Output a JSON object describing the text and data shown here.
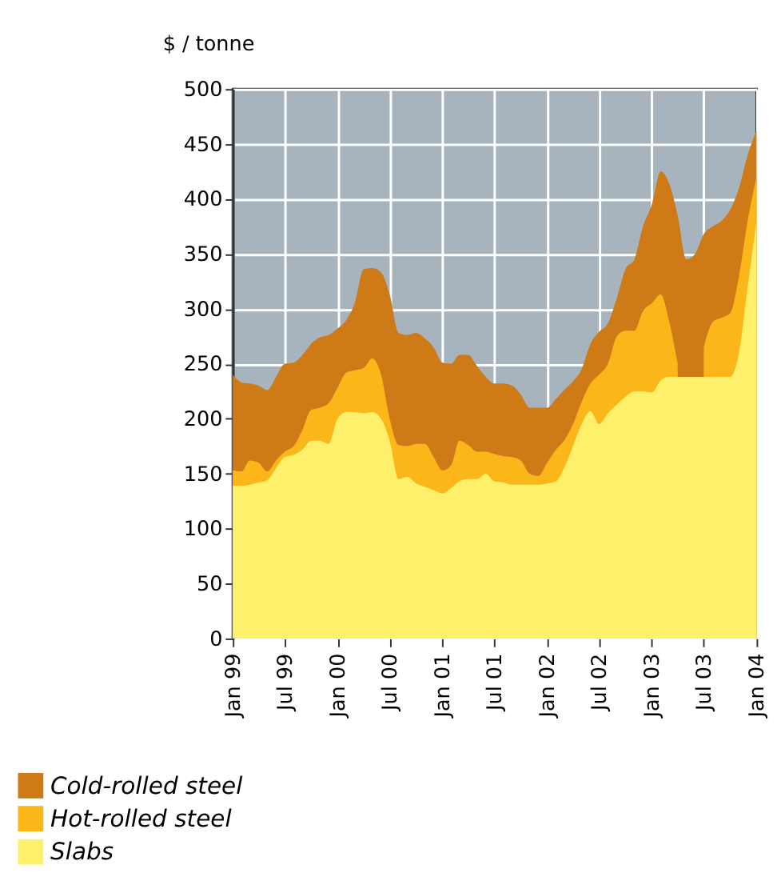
{
  "chart_data": {
    "type": "area",
    "ylabel": "$ / tonne",
    "x": [
      "1999-01",
      "1999-02",
      "1999-03",
      "1999-04",
      "1999-05",
      "1999-06",
      "1999-07",
      "1999-08",
      "1999-09",
      "1999-10",
      "1999-11",
      "1999-12",
      "2000-01",
      "2000-02",
      "2000-03",
      "2000-04",
      "2000-05",
      "2000-06",
      "2000-07",
      "2000-08",
      "2000-09",
      "2000-10",
      "2000-11",
      "2000-12",
      "2001-01",
      "2001-02",
      "2001-03",
      "2001-04",
      "2001-05",
      "2001-06",
      "2001-07",
      "2001-08",
      "2001-09",
      "2001-10",
      "2001-11",
      "2001-12",
      "2002-01",
      "2002-02",
      "2002-03",
      "2002-04",
      "2002-05",
      "2002-06",
      "2002-07",
      "2002-08",
      "2002-09",
      "2002-10",
      "2002-11",
      "2002-12",
      "2003-01",
      "2003-02",
      "2003-03",
      "2003-04",
      "2003-05",
      "2003-06",
      "2003-07",
      "2003-08",
      "2003-09",
      "2003-10",
      "2003-11",
      "2003-12",
      "2004-01"
    ],
    "series": [
      {
        "name": "Cold-rolled steel",
        "color": "#cd7a17",
        "values": [
          240,
          233,
          232,
          230,
          226,
          238,
          250,
          251,
          258,
          268,
          274,
          276,
          282,
          290,
          305,
          336,
          337,
          333,
          313,
          278,
          276,
          278,
          273,
          265,
          251,
          250,
          258,
          258,
          248,
          238,
          232,
          232,
          230,
          222,
          210,
          210,
          210,
          218,
          226,
          234,
          245,
          268,
          279,
          287,
          310,
          336,
          345,
          375,
          395,
          425,
          415,
          385,
          345,
          350,
          368,
          375,
          380,
          390,
          410,
          440,
          462
        ]
      },
      {
        "name": "Hot-rolled steel",
        "color": "#fbb619",
        "values": [
          153,
          152,
          162,
          160,
          152,
          162,
          170,
          175,
          190,
          208,
          210,
          214,
          228,
          242,
          244,
          246,
          255,
          240,
          200,
          176,
          175,
          177,
          177,
          165,
          153,
          158,
          180,
          176,
          170,
          170,
          168,
          166,
          165,
          162,
          150,
          148,
          160,
          172,
          180,
          195,
          215,
          232,
          240,
          250,
          275,
          280,
          280,
          298,
          305,
          313,
          290,
          250,
          null,
          null,
          265,
          288,
          292,
          296,
          330,
          380,
          420
        ]
      },
      {
        "name": "Slabs",
        "color": "#fff06b",
        "values": [
          139,
          139,
          140,
          142,
          144,
          155,
          165,
          167,
          172,
          180,
          180,
          177,
          200,
          206,
          206,
          205,
          206,
          200,
          180,
          145,
          147,
          141,
          138,
          135,
          132,
          137,
          143,
          145,
          145,
          150,
          143,
          142,
          140,
          140,
          140,
          140,
          141,
          143,
          155,
          175,
          195,
          207,
          195,
          205,
          213,
          220,
          225,
          225,
          224,
          235,
          238,
          238,
          238,
          238,
          238,
          238,
          238,
          238,
          260,
          320,
          380
        ]
      }
    ],
    "xlim": [
      "1999-01",
      "2004-01"
    ],
    "xticks": [
      {
        "value": "1999-01",
        "label": "Jan 99"
      },
      {
        "value": "1999-07",
        "label": "Jul 99"
      },
      {
        "value": "2000-01",
        "label": "Jan 00"
      },
      {
        "value": "2000-07",
        "label": "Jul 00"
      },
      {
        "value": "2001-01",
        "label": "Jan 01"
      },
      {
        "value": "2001-07",
        "label": "Jul 01"
      },
      {
        "value": "2002-01",
        "label": "Jan 02"
      },
      {
        "value": "2002-07",
        "label": "Jul 02"
      },
      {
        "value": "2003-01",
        "label": "Jan 03"
      },
      {
        "value": "2003-07",
        "label": "Jul 03"
      },
      {
        "value": "2004-01",
        "label": "Jan 04"
      }
    ],
    "ylim": [
      0,
      500
    ],
    "yticks": [
      0,
      50,
      100,
      150,
      200,
      250,
      300,
      350,
      400,
      450,
      500
    ],
    "grid": true,
    "legend": "bottom left"
  }
}
